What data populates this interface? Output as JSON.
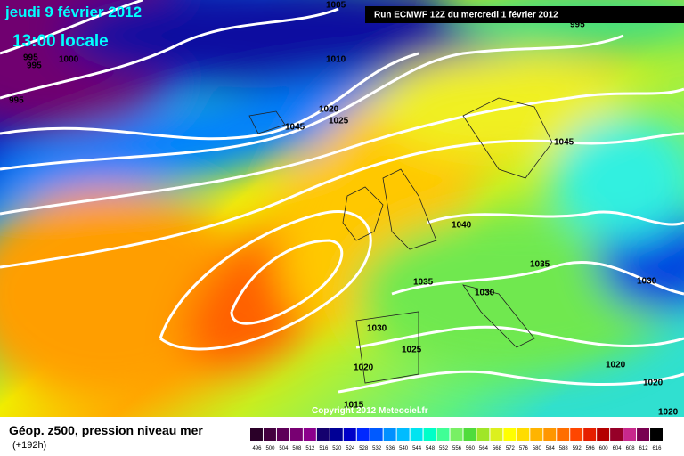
{
  "header": {
    "valid": "jeudi 9 février 2012",
    "local_time": "13:00 locale",
    "run": "Run ECMWF 12Z du mercredi 1 février 2012"
  },
  "copyright": "Copyright 2012 Meteociel.fr",
  "isobars": {
    "labels": [
      "1005",
      "995",
      "995",
      "995",
      "1000",
      "995",
      "1010",
      "1020",
      "1025",
      "1045",
      "1045",
      "1040",
      "1035",
      "1035",
      "1030",
      "1030",
      "1030",
      "1025",
      "1020",
      "1020",
      "1020",
      "1020",
      "1015"
    ]
  },
  "footer": {
    "title": "Géop. z500, pression niveau mer",
    "lead": "(+192h)"
  },
  "legend": {
    "values": [
      496,
      500,
      504,
      508,
      512,
      516,
      520,
      524,
      528,
      532,
      536,
      540,
      544,
      548,
      552,
      556,
      560,
      564,
      568,
      572,
      576,
      580,
      584,
      588,
      592,
      596,
      600,
      604,
      608,
      612,
      616
    ],
    "colors": [
      "#2a0028",
      "#44003f",
      "#5e0058",
      "#780072",
      "#8c008c",
      "#14006e",
      "#000096",
      "#0000c8",
      "#0028ff",
      "#005aff",
      "#0090ff",
      "#00bcff",
      "#00e4f0",
      "#00ffc8",
      "#40ff96",
      "#78f064",
      "#50dc3c",
      "#a0e628",
      "#dcf01e",
      "#ffff00",
      "#ffdc00",
      "#ffb400",
      "#ff9600",
      "#ff6e00",
      "#ff4600",
      "#e61e00",
      "#b40000",
      "#960028",
      "#c8288c",
      "#780050",
      "#000000"
    ]
  }
}
